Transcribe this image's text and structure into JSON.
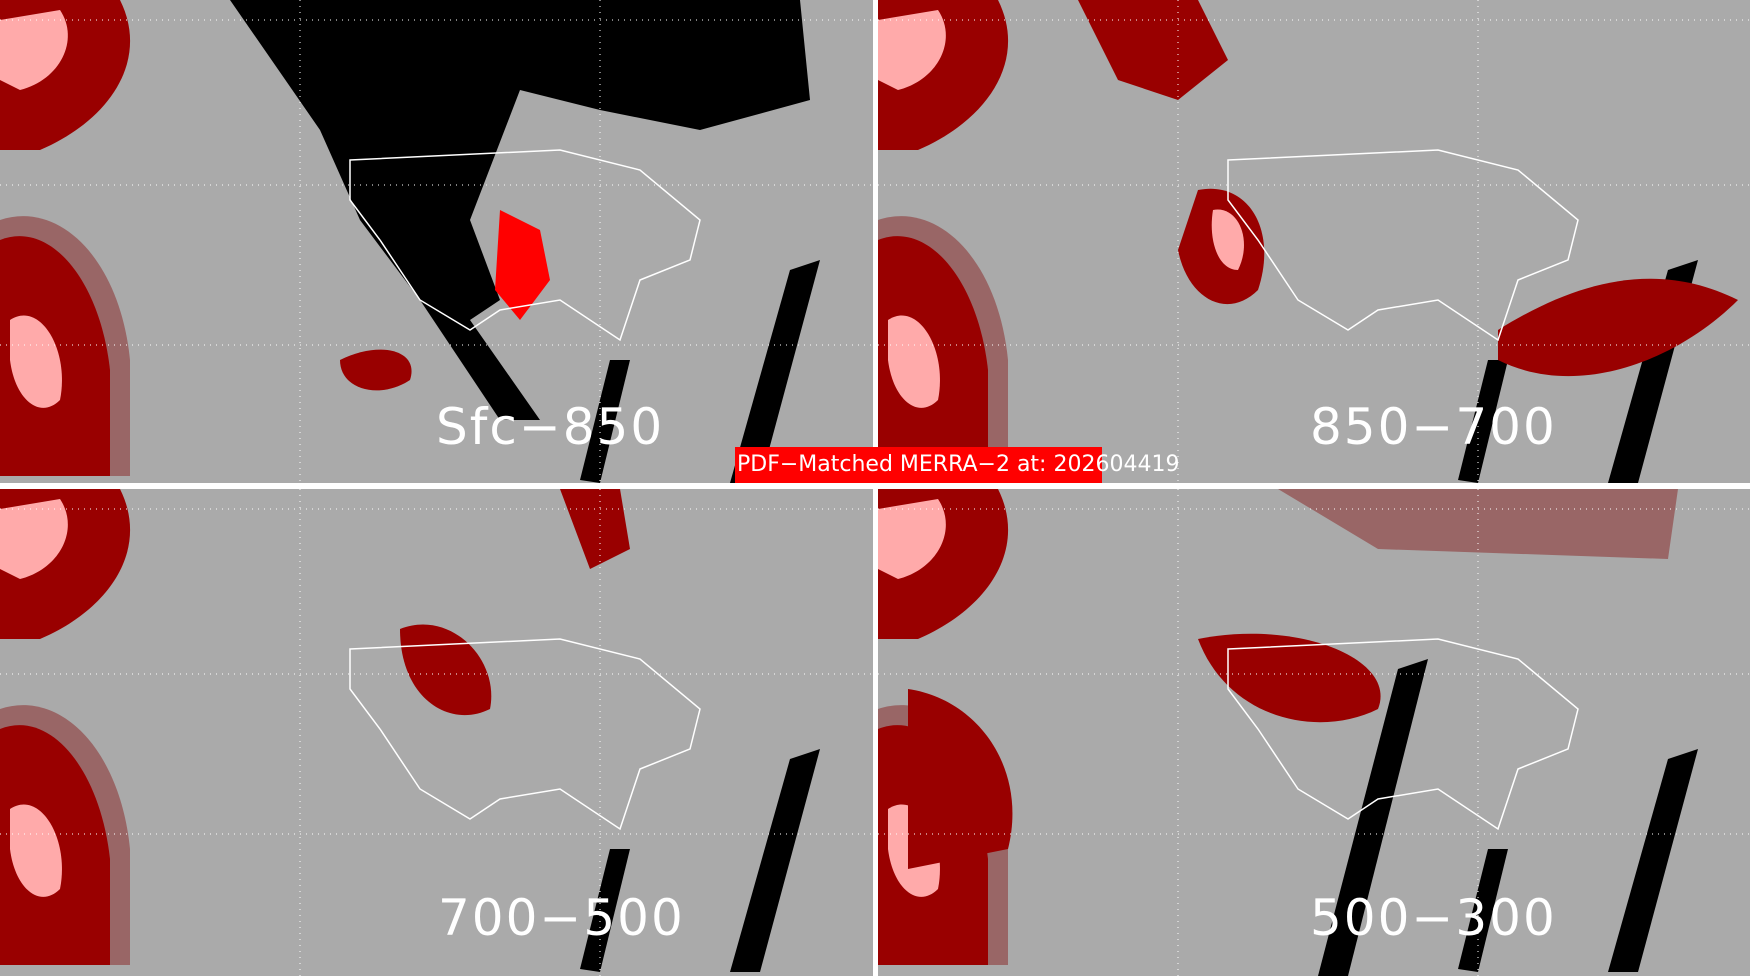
{
  "title": "PDF−Matched MERRA−2 at: 202604419",
  "colors": {
    "background": "#aaaaaa",
    "title_box": "#ff0000",
    "dark_red": "#990000",
    "bright_red": "#ff0000",
    "pink": "#ffaaaa",
    "rose_gray": "#996666",
    "no_data": "#000000",
    "coastlines": "#ffffff"
  },
  "panels": [
    {
      "label": "Sfc−850"
    },
    {
      "label": "850−700"
    },
    {
      "label": "700−500"
    },
    {
      "label": "500−300"
    }
  ]
}
